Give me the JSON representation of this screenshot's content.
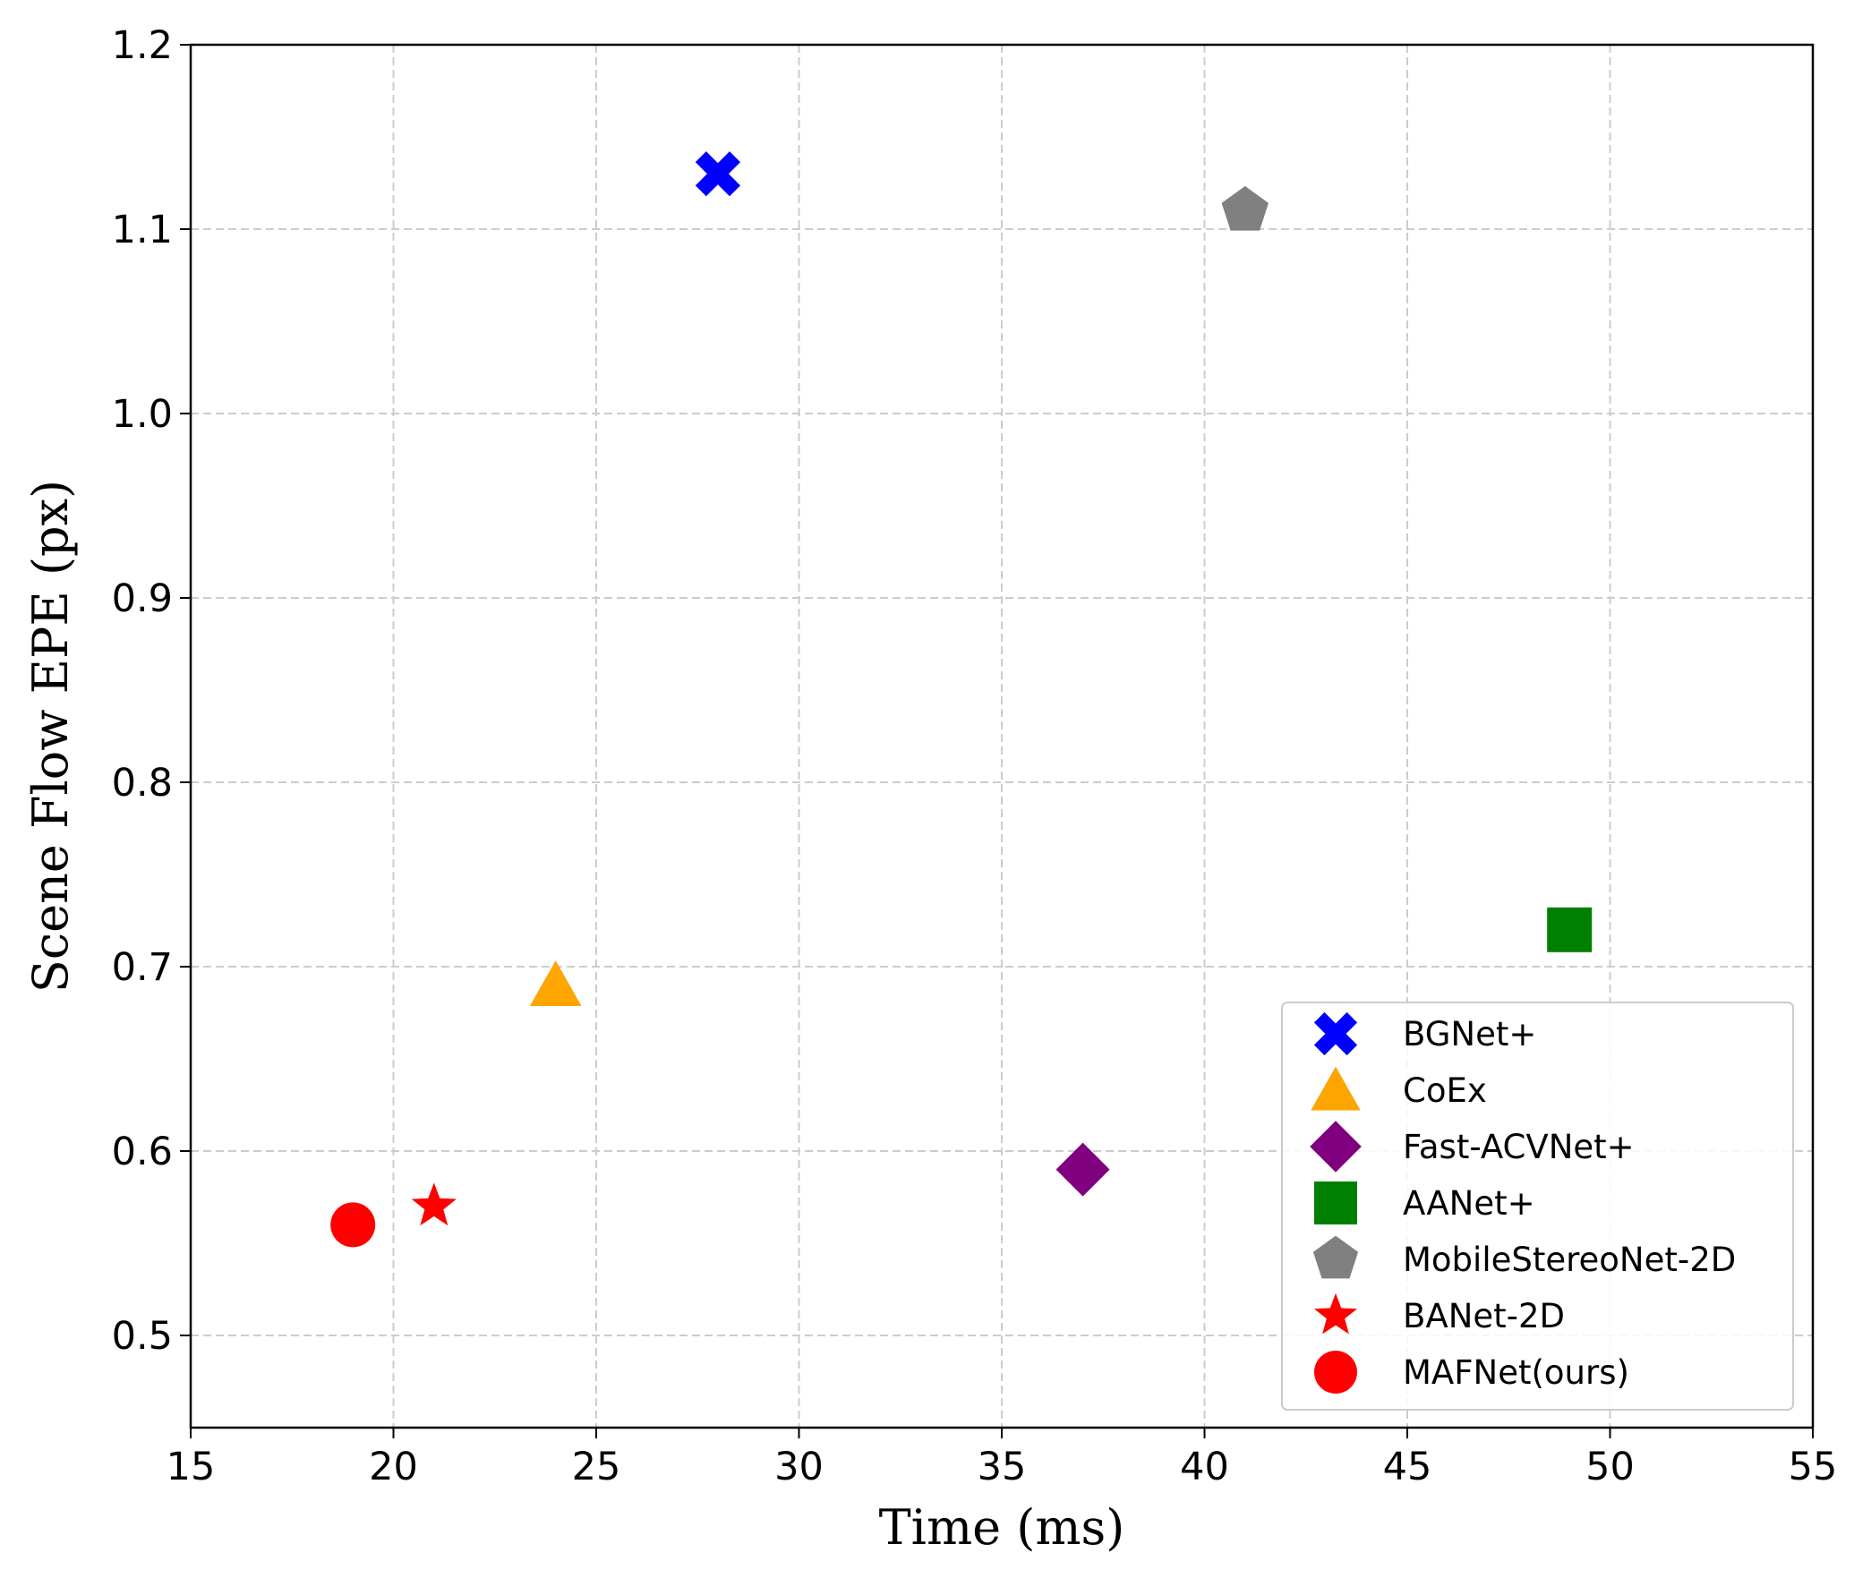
{
  "chart_data": {
    "type": "scatter",
    "xlabel": "Time (ms)",
    "ylabel": "Scene Flow EPE (px)",
    "xlim": [
      15,
      55
    ],
    "ylim": [
      0.45,
      1.2
    ],
    "xticks": [
      "15",
      "20",
      "25",
      "30",
      "35",
      "40",
      "45",
      "50",
      "55"
    ],
    "yticks": [
      "0.5",
      "0.6",
      "0.7",
      "0.8",
      "0.9",
      "1.0",
      "1.1",
      "1.2"
    ],
    "grid": true,
    "legend_position": "lower-right",
    "series": [
      {
        "name": "BGNet+",
        "x": 28,
        "y": 1.13,
        "marker": "x-filled",
        "color": "#0000ff"
      },
      {
        "name": "CoEx",
        "x": 24,
        "y": 0.69,
        "marker": "triangle",
        "color": "#ffa500"
      },
      {
        "name": "Fast-ACVNet+",
        "x": 37,
        "y": 0.59,
        "marker": "diamond",
        "color": "#800080"
      },
      {
        "name": "AANet+",
        "x": 49,
        "y": 0.72,
        "marker": "square",
        "color": "#008000"
      },
      {
        "name": "MobileStereoNet-2D",
        "x": 41,
        "y": 1.11,
        "marker": "pentagon",
        "color": "#808080"
      },
      {
        "name": "BANet-2D",
        "x": 21,
        "y": 0.57,
        "marker": "star",
        "color": "#ff0000"
      },
      {
        "name": "MAFNet(ours)",
        "x": 19,
        "y": 0.56,
        "marker": "circle",
        "color": "#ff0000"
      }
    ]
  }
}
